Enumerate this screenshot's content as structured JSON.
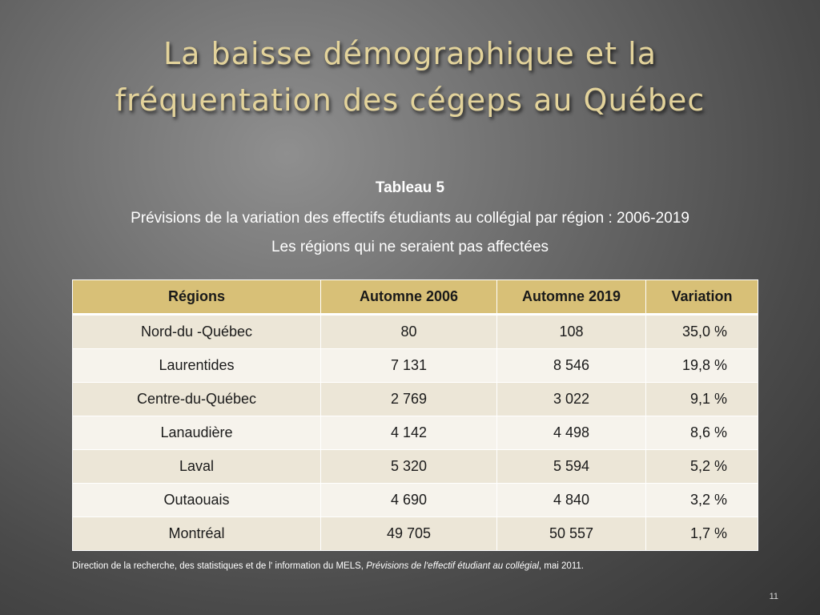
{
  "slide": {
    "title_line1": "La baisse démographique et la",
    "title_line2": "fréquentation des cégeps au Québec",
    "page_number": "11"
  },
  "caption": {
    "label": "Tableau 5",
    "line1": "Prévisions de la variation des effectifs étudiants au collégial par région : 2006-2019",
    "line2": "Les régions qui ne seraient pas affectées"
  },
  "table": {
    "headers": [
      "Régions",
      "Automne 2006",
      "Automne 2019",
      "Variation"
    ],
    "rows": [
      [
        "Nord-du -Québec",
        "80",
        "108",
        "35,0 %"
      ],
      [
        "Laurentides",
        "7 131",
        "8 546",
        "19,8 %"
      ],
      [
        "Centre-du-Québec",
        "2 769",
        "3 022",
        "9,1 %"
      ],
      [
        "Lanaudière",
        "4 142",
        "4 498",
        "8,6 %"
      ],
      [
        "Laval",
        "5 320",
        "5 594",
        "5,2 %"
      ],
      [
        "Outaouais",
        "4 690",
        "4 840",
        "3,2 %"
      ],
      [
        "Montréal",
        "49 705",
        "50 557",
        "1,7 %"
      ]
    ]
  },
  "source": {
    "prefix": "Direction de la recherche, des statistiques et de lʹ information du MELS, ",
    "title": "Prévisions de lʹeffectif étudiant au collégial",
    "suffix": ", mai 2011."
  }
}
